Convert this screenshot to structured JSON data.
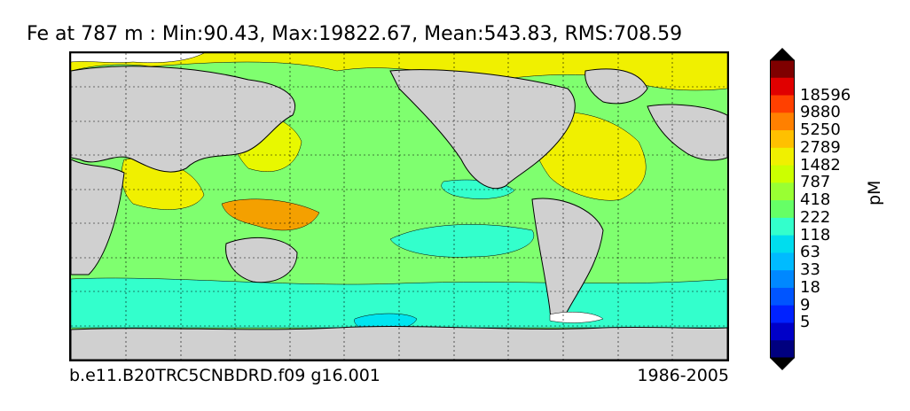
{
  "title": "Fe at 787 m : Min:90.43, Max:19822.67, Mean:543.83, RMS:708.59",
  "footer": {
    "case_name": "b.e11.B20TRC5CNBDRD.f09 g16.001",
    "years": "1986-2005"
  },
  "colorbar": {
    "units": "pM",
    "colors": [
      "#00007f",
      "#0000c8",
      "#0022ff",
      "#0055ff",
      "#0088ff",
      "#00bbff",
      "#00ddee",
      "#33ffcc",
      "#66ff66",
      "#99ff33",
      "#ccff00",
      "#f0f000",
      "#ffc000",
      "#ff8000",
      "#ff4000",
      "#e00000",
      "#7f0000"
    ],
    "labels": [
      "18596",
      "9880",
      "5250",
      "2789",
      "1482",
      "787",
      "418",
      "222",
      "118",
      "63",
      "33",
      "18",
      "9",
      "5"
    ],
    "over_color": "#000000",
    "under_color": "#000000"
  },
  "map": {
    "land_color": "#d0d0d0",
    "ice_color": "#ffffff",
    "grid": "dashed"
  }
}
